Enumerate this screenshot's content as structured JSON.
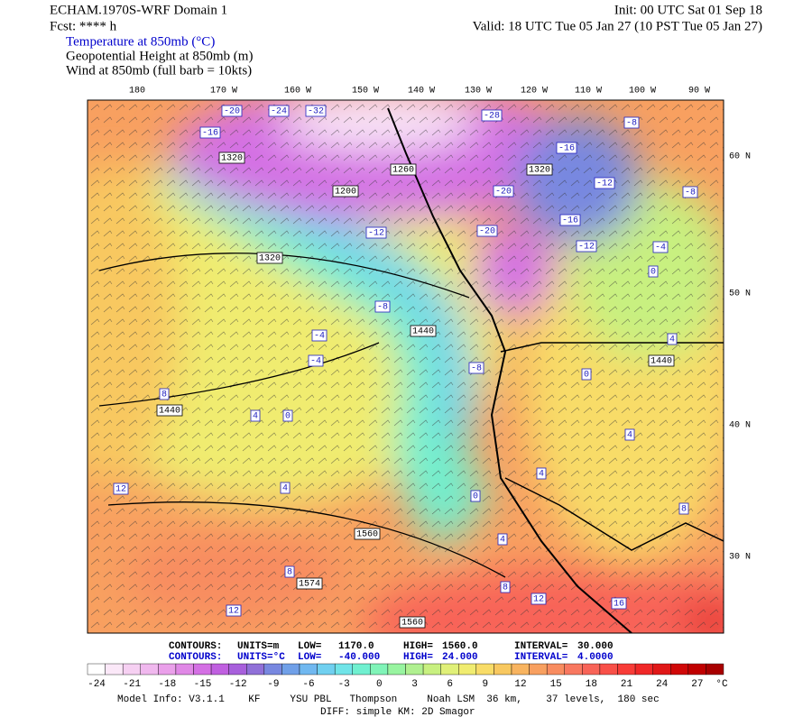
{
  "header": {
    "left": [
      "ECHAM.1970S-WRF Domain 1",
      "Fcst: **** h"
    ],
    "right": [
      "Init: 00 UTC Sat 01 Sep 18",
      "Valid: 18 UTC Tue 05 Jan 27 (10 PST Tue 05 Jan 27)"
    ],
    "fields": [
      "Temperature at 850mb (°C)",
      "Geopotential Height at 850mb (m)",
      "Wind at 850mb (full barb = 10kts)"
    ]
  },
  "longitudes": [
    "180",
    "170 W",
    "160 W",
    "150 W",
    "140 W",
    "130 W",
    "120 W",
    "110 W",
    "100 W",
    "90 W"
  ],
  "latitudes": [
    "60 N",
    "50 N",
    "40 N",
    "30 N"
  ],
  "height_labels": [
    "1320",
    "1200",
    "1260",
    "1320",
    "1320",
    "1440",
    "1440",
    "1440",
    "1560",
    "1574",
    "1560"
  ],
  "temperature_labels": [
    "-20",
    "-24",
    "-32",
    "-16",
    "-28",
    "-16",
    "-12",
    "-20",
    "-20",
    "-16",
    "-12",
    "-12",
    "-8",
    "-8",
    "-4",
    "0",
    "-8",
    "-4",
    "-4",
    "-8",
    "8",
    "4",
    "0",
    "4",
    "12",
    "0",
    "4",
    "4",
    "0",
    "4",
    "4",
    "8",
    "8",
    "12",
    "8",
    "12",
    "16"
  ],
  "info": {
    "height": [
      "CONTOURS:",
      "UNITS=m",
      "LOW=",
      "1170.0",
      "HIGH=",
      "1560.0",
      "INTERVAL=",
      "30.000"
    ],
    "temperature": [
      "CONTOURS:",
      "UNITS=°C",
      "LOW=",
      "-40.000",
      "HIGH=",
      "24.000",
      "INTERVAL=",
      "4.0000"
    ]
  },
  "colorbar": {
    "labels": [
      "-24",
      "-21",
      "-18",
      "-15",
      "-12",
      "-9",
      "-6",
      "-3",
      "0",
      "3",
      "6",
      "9",
      "12",
      "15",
      "18",
      "21",
      "24",
      "27"
    ],
    "unit": "°C",
    "colors": [
      "#ffffff",
      "#fbe8f8",
      "#f6d0f2",
      "#f0b8ee",
      "#eaa0ea",
      "#e088e6",
      "#d470e4",
      "#c060e0",
      "#a860dc",
      "#9070d8",
      "#7888e0",
      "#70a0e8",
      "#70b8f0",
      "#70d0f0",
      "#70e4e8",
      "#70f0d0",
      "#80f4b8",
      "#98f4a0",
      "#b0f090",
      "#c8f080",
      "#e0f078",
      "#f0ec70",
      "#f8dc68",
      "#f8c860",
      "#f8b460",
      "#f8a060",
      "#f88c60",
      "#f87860",
      "#f86458",
      "#f85048",
      "#f83c38",
      "#f02828",
      "#e01818",
      "#d00808",
      "#c00000",
      "#a80000"
    ]
  },
  "footer": [
    "Model Info: V3.1.1    KF     YSU PBL   Thompson     Noah LSM  36 km,    37 levels,  180 sec",
    "DIFF: simple KM: 2D Smagor"
  ]
}
